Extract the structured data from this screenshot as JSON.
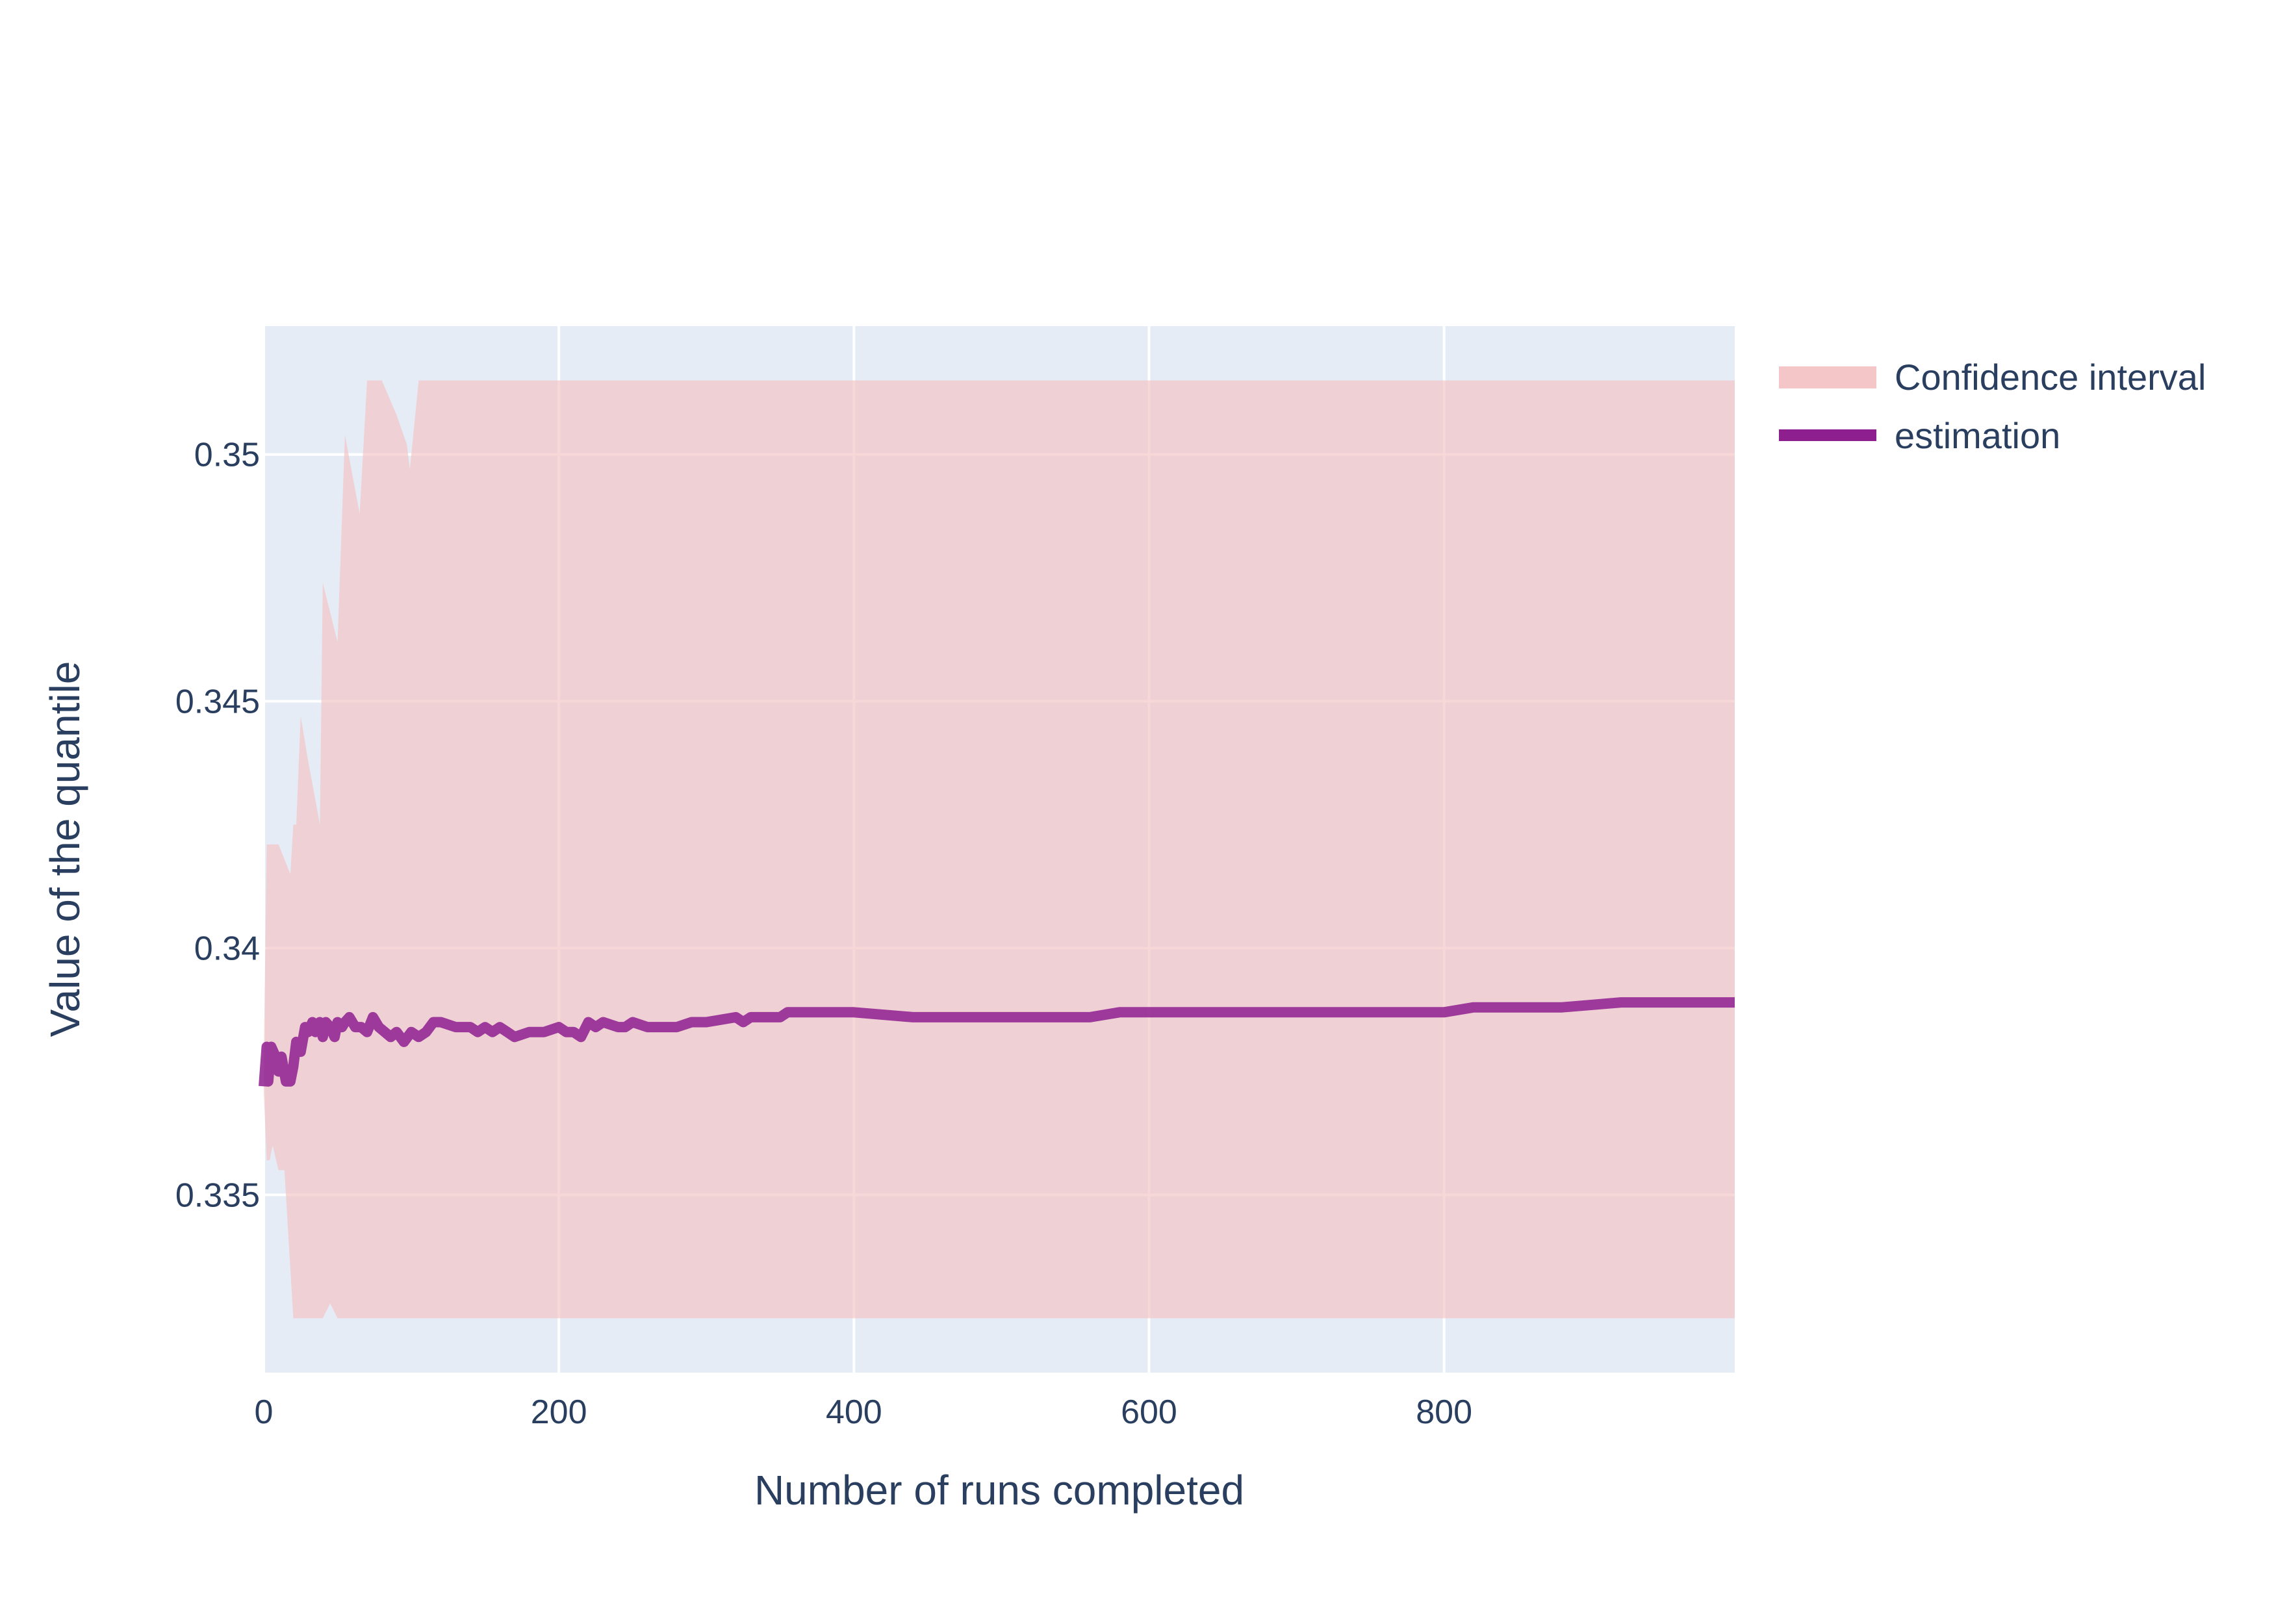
{
  "chart_data": {
    "type": "line",
    "title": "",
    "xlabel": "Number of runs completed",
    "ylabel": "Value of the quantile",
    "xlim": [
      0,
      997
    ],
    "ylim": [
      0.3314,
      0.3526
    ],
    "x_ticks": [
      0,
      200,
      400,
      600,
      800
    ],
    "y_ticks": [
      0.335,
      0.34,
      0.345,
      0.35
    ],
    "x_tick_labels": [
      "0",
      "200",
      "400",
      "600",
      "800"
    ],
    "y_tick_labels": [
      "0.335",
      "0.34",
      "0.345",
      "0.35"
    ],
    "grid": true,
    "legend_position": "top-right",
    "colors": {
      "plot_background": "#E5ECF6",
      "grid": "#ffffff",
      "confidence_fill": "#F4C6C8",
      "estimation_line": "#8E1F8F",
      "text": "#2a3f5f"
    },
    "series": [
      {
        "name": "Confidence interval",
        "kind": "band",
        "x": [
          0,
          2,
          4,
          6,
          10,
          14,
          18,
          20,
          22,
          25,
          30,
          35,
          38,
          40,
          45,
          50,
          55,
          60,
          65,
          70,
          75,
          80,
          90,
          97,
          99,
          105,
          997
        ],
        "upper": [
          0.3377,
          0.3421,
          0.3421,
          0.3421,
          0.3421,
          0.3418,
          0.3415,
          0.3425,
          0.3425,
          0.3447,
          0.3438,
          0.343,
          0.3425,
          0.3474,
          0.3468,
          0.3462,
          0.3504,
          0.3496,
          0.3488,
          0.3515,
          0.3515,
          0.3515,
          0.3508,
          0.3502,
          0.3497,
          0.3515,
          0.3515
        ],
        "lower": [
          0.3371,
          0.3357,
          0.3357,
          0.336,
          0.3355,
          0.3355,
          0.3335,
          0.3325,
          0.3325,
          0.3325,
          0.3325,
          0.3325,
          0.3325,
          0.3325,
          0.3328,
          0.3325,
          0.3325,
          0.3325,
          0.3325,
          0.3325,
          0.3325,
          0.3325,
          0.3325,
          0.3325,
          0.3325,
          0.3325,
          0.3325
        ]
      },
      {
        "name": "estimation",
        "kind": "line",
        "x": [
          0,
          2,
          3,
          5,
          8,
          10,
          12,
          15,
          18,
          20,
          22,
          25,
          28,
          30,
          33,
          35,
          38,
          40,
          42,
          45,
          48,
          50,
          53,
          55,
          58,
          62,
          66,
          70,
          74,
          78,
          82,
          86,
          90,
          95,
          100,
          105,
          110,
          115,
          120,
          130,
          140,
          145,
          150,
          155,
          160,
          165,
          170,
          180,
          190,
          200,
          205,
          210,
          215,
          220,
          225,
          230,
          240,
          245,
          250,
          260,
          270,
          275,
          280,
          290,
          300,
          320,
          325,
          330,
          340,
          350,
          355,
          360,
          380,
          400,
          440,
          470,
          480,
          500,
          520,
          540,
          560,
          580,
          600,
          620,
          640,
          660,
          700,
          740,
          760,
          800,
          820,
          840,
          880,
          920,
          950,
          997
        ],
        "y": [
          0.3372,
          0.338,
          0.3373,
          0.338,
          0.3378,
          0.3375,
          0.3378,
          0.3373,
          0.3373,
          0.3376,
          0.3381,
          0.3379,
          0.3384,
          0.3383,
          0.3385,
          0.3383,
          0.3385,
          0.3382,
          0.3385,
          0.3384,
          0.3382,
          0.3385,
          0.3384,
          0.3385,
          0.3386,
          0.3384,
          0.3384,
          0.3383,
          0.3386,
          0.3384,
          0.3383,
          0.3382,
          0.3383,
          0.3381,
          0.3383,
          0.3382,
          0.3383,
          0.3385,
          0.3385,
          0.3384,
          0.3384,
          0.3383,
          0.3384,
          0.3383,
          0.3384,
          0.3383,
          0.3382,
          0.3383,
          0.3383,
          0.3384,
          0.3383,
          0.3383,
          0.3382,
          0.3385,
          0.3384,
          0.3385,
          0.3384,
          0.3384,
          0.3385,
          0.3384,
          0.3384,
          0.3384,
          0.3384,
          0.3385,
          0.3385,
          0.3386,
          0.3385,
          0.3386,
          0.3386,
          0.3386,
          0.3387,
          0.3387,
          0.3387,
          0.3387,
          0.3386,
          0.3386,
          0.3386,
          0.3386,
          0.3386,
          0.3386,
          0.3386,
          0.3387,
          0.3387,
          0.3387,
          0.3387,
          0.3387,
          0.3387,
          0.3387,
          0.3387,
          0.3387,
          0.3388,
          0.3388,
          0.3388,
          0.3389,
          0.3389,
          0.3389
        ]
      }
    ]
  }
}
